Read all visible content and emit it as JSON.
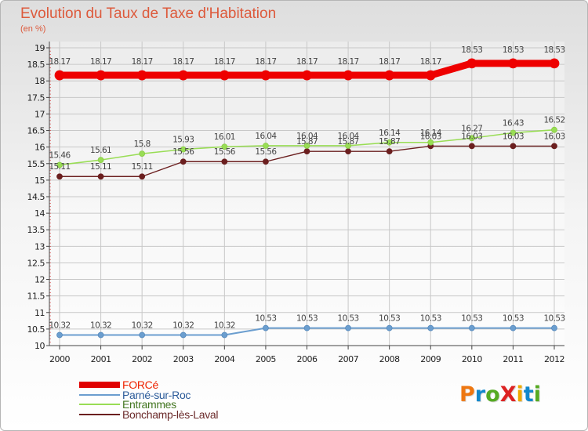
{
  "title": "Evolution du Taux de Taxe d'Habitation",
  "unit": "(en %)",
  "logo": "ProXiti",
  "chart_data": {
    "type": "line",
    "title": "Evolution du Taux de Taxe d'Habitation",
    "ylabel": "(en %)",
    "x": [
      2000,
      2001,
      2002,
      2003,
      2004,
      2005,
      2006,
      2007,
      2008,
      2009,
      2010,
      2011,
      2012
    ],
    "ylim": [
      10,
      19
    ],
    "yticks": [
      10,
      10.5,
      11,
      11.5,
      12,
      12.5,
      13,
      13.5,
      14,
      14.5,
      15,
      15.5,
      16,
      16.5,
      17,
      17.5,
      18,
      18.5,
      19
    ],
    "series": [
      {
        "name": "FORCé",
        "color": "#ee0000",
        "values": [
          18.17,
          18.17,
          18.17,
          18.17,
          18.17,
          18.17,
          18.17,
          18.17,
          18.17,
          18.17,
          18.53,
          18.53,
          18.53
        ]
      },
      {
        "name": "Parné-sur-Roc",
        "color": "#6b9ecf",
        "values": [
          10.32,
          10.32,
          10.32,
          10.32,
          10.32,
          10.53,
          10.53,
          10.53,
          10.53,
          10.53,
          10.53,
          10.53,
          10.53
        ]
      },
      {
        "name": "Entrammes",
        "color": "#99dd55",
        "values": [
          15.46,
          15.61,
          15.8,
          15.93,
          16.01,
          16.04,
          16.04,
          16.04,
          16.14,
          16.14,
          16.27,
          16.43,
          16.52
        ]
      },
      {
        "name": "Bonchamp-lès-Laval",
        "color": "#6b1f1f",
        "values": [
          15.11,
          15.11,
          15.11,
          15.56,
          15.56,
          15.56,
          15.87,
          15.87,
          15.87,
          16.03,
          16.03,
          16.03,
          16.03
        ]
      }
    ],
    "legend": "bottom-left"
  }
}
